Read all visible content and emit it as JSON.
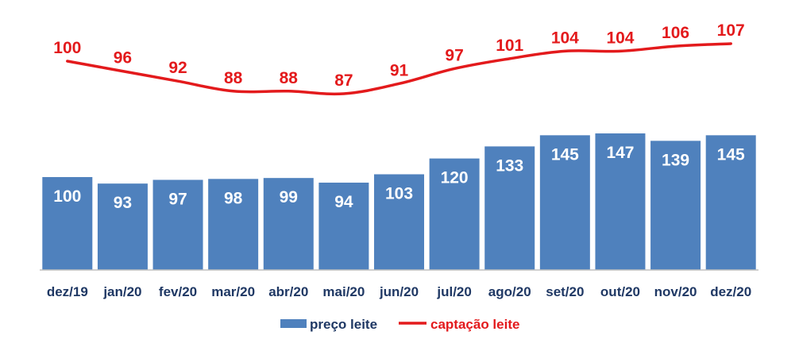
{
  "chart_data": {
    "type": "bar",
    "categories": [
      "dez/19",
      "jan/20",
      "fev/20",
      "mar/20",
      "abr/20",
      "mai/20",
      "jun/20",
      "jul/20",
      "ago/20",
      "set/20",
      "out/20",
      "nov/20",
      "dez/20"
    ],
    "series": [
      {
        "name": "preço leite",
        "type": "bar",
        "color": "#4f81bd",
        "values": [
          100,
          93,
          97,
          98,
          99,
          94,
          103,
          120,
          133,
          145,
          147,
          139,
          145
        ]
      },
      {
        "name": "captação leite",
        "type": "line",
        "color": "#e31a1c",
        "values": [
          100,
          96,
          92,
          88,
          88,
          87,
          91,
          97,
          101,
          104,
          104,
          106,
          107
        ]
      }
    ],
    "legend": "bottom-center",
    "grid": false,
    "axis_color": "#bfbfbf",
    "tick_label_color": "#1f3864"
  }
}
